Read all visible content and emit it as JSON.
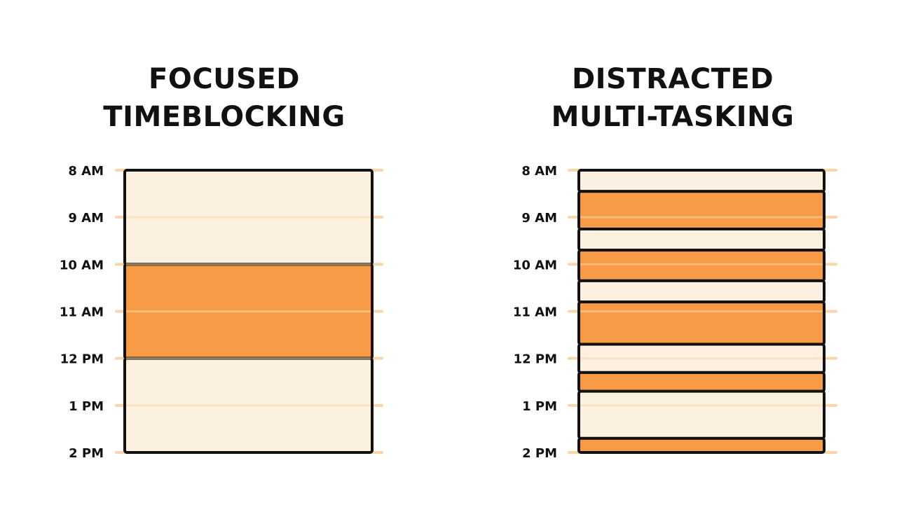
{
  "colors": {
    "focus": "#F7963C",
    "light": "#FCF1E0",
    "gridline": "#F9D6A8",
    "outline": "#111111"
  },
  "time_labels": [
    "8 AM",
    "9 AM",
    "10 AM",
    "11 AM",
    "12 PM",
    "1 PM",
    "2 PM"
  ],
  "panels": [
    {
      "title_line1": "FOCUSED",
      "title_line2": "TIMEBLOCKING",
      "blocks": [
        {
          "start": 8,
          "end": 10,
          "kind": "light"
        },
        {
          "start": 10,
          "end": 12,
          "kind": "focus"
        },
        {
          "start": 12,
          "end": 14,
          "kind": "light"
        }
      ]
    },
    {
      "title_line1": "DISTRACTED",
      "title_line2": "MULTI-TASKING",
      "blocks": [
        {
          "start": 8.0,
          "end": 8.45,
          "kind": "light"
        },
        {
          "start": 8.45,
          "end": 9.25,
          "kind": "focus"
        },
        {
          "start": 9.25,
          "end": 9.7,
          "kind": "light"
        },
        {
          "start": 9.7,
          "end": 10.35,
          "kind": "focus"
        },
        {
          "start": 10.35,
          "end": 10.8,
          "kind": "light"
        },
        {
          "start": 10.8,
          "end": 11.7,
          "kind": "focus"
        },
        {
          "start": 11.7,
          "end": 12.3,
          "kind": "light"
        },
        {
          "start": 12.3,
          "end": 12.7,
          "kind": "focus"
        },
        {
          "start": 12.7,
          "end": 13.7,
          "kind": "light"
        },
        {
          "start": 13.7,
          "end": 14.0,
          "kind": "focus"
        }
      ]
    }
  ]
}
